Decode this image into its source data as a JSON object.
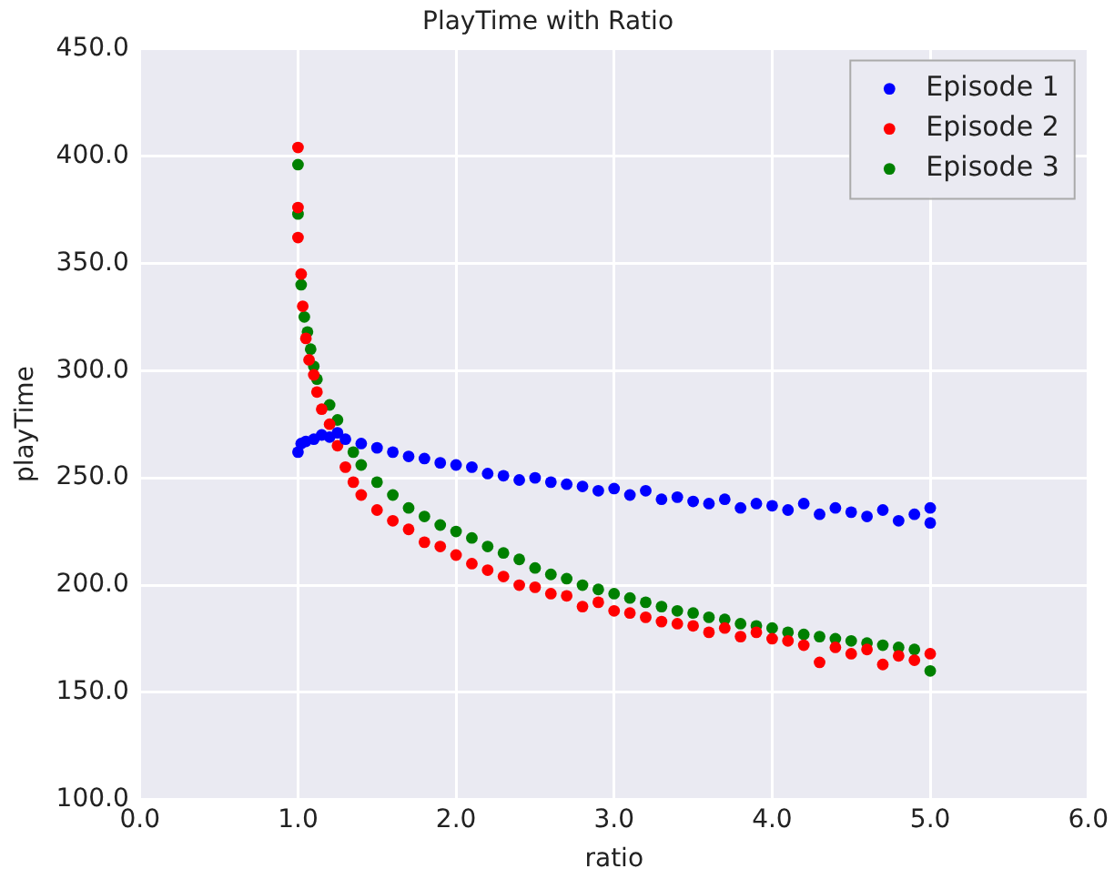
{
  "chart_data": {
    "type": "scatter",
    "title": "PlayTime with Ratio",
    "xlabel": "ratio",
    "ylabel": "playTime",
    "xlim": [
      0,
      6
    ],
    "ylim": [
      100,
      450
    ],
    "xticks": [
      {
        "value": 0,
        "label": "0.0"
      },
      {
        "value": 1,
        "label": "1.0"
      },
      {
        "value": 2,
        "label": "2.0"
      },
      {
        "value": 3,
        "label": "3.0"
      },
      {
        "value": 4,
        "label": "4.0"
      },
      {
        "value": 5,
        "label": "5.0"
      },
      {
        "value": 6,
        "label": "6.0"
      }
    ],
    "yticks": [
      {
        "value": 100,
        "label": "100.0"
      },
      {
        "value": 150,
        "label": "150.0"
      },
      {
        "value": 200,
        "label": "200.0"
      },
      {
        "value": 250,
        "label": "250.0"
      },
      {
        "value": 300,
        "label": "300.0"
      },
      {
        "value": 350,
        "label": "350.0"
      },
      {
        "value": 400,
        "label": "400.0"
      },
      {
        "value": 450,
        "label": "450.0"
      }
    ],
    "grid": true,
    "legend": "top right",
    "marker": "circle",
    "series": [
      {
        "name": "Episode 1",
        "color": "#0000ff",
        "x": [
          1.0,
          1.02,
          1.05,
          1.1,
          1.15,
          1.2,
          1.25,
          1.3,
          1.4,
          1.5,
          1.6,
          1.7,
          1.8,
          1.9,
          2.0,
          2.1,
          2.2,
          2.3,
          2.4,
          2.5,
          2.6,
          2.7,
          2.8,
          2.9,
          3.0,
          3.1,
          3.2,
          3.3,
          3.4,
          3.5,
          3.6,
          3.7,
          3.8,
          3.9,
          4.0,
          4.1,
          4.2,
          4.3,
          4.4,
          4.5,
          4.6,
          4.7,
          4.8,
          4.9,
          5.0,
          5.0
        ],
        "values": [
          262,
          266,
          267,
          268,
          270,
          269,
          271,
          268,
          266,
          264,
          262,
          260,
          259,
          257,
          256,
          255,
          252,
          251,
          249,
          250,
          248,
          247,
          246,
          244,
          245,
          242,
          244,
          240,
          241,
          239,
          238,
          240,
          236,
          238,
          237,
          235,
          238,
          233,
          236,
          234,
          232,
          235,
          230,
          233,
          236,
          229
        ]
      },
      {
        "name": "Episode 2",
        "color": "#ff0000",
        "x": [
          1.0,
          1.0,
          1.0,
          1.02,
          1.03,
          1.05,
          1.07,
          1.1,
          1.12,
          1.15,
          1.2,
          1.25,
          1.3,
          1.35,
          1.4,
          1.5,
          1.6,
          1.7,
          1.8,
          1.9,
          2.0,
          2.1,
          2.2,
          2.3,
          2.4,
          2.5,
          2.6,
          2.7,
          2.8,
          2.9,
          3.0,
          3.1,
          3.2,
          3.3,
          3.4,
          3.5,
          3.6,
          3.7,
          3.8,
          3.9,
          4.0,
          4.1,
          4.2,
          4.3,
          4.4,
          4.5,
          4.6,
          4.7,
          4.8,
          4.9,
          5.0
        ],
        "values": [
          404,
          376,
          362,
          345,
          330,
          315,
          305,
          298,
          290,
          282,
          275,
          265,
          255,
          248,
          242,
          235,
          230,
          226,
          220,
          218,
          214,
          210,
          207,
          204,
          200,
          199,
          196,
          195,
          190,
          192,
          188,
          187,
          185,
          183,
          182,
          181,
          178,
          180,
          176,
          178,
          175,
          174,
          172,
          164,
          171,
          168,
          170,
          163,
          167,
          165,
          168
        ]
      },
      {
        "name": "Episode 3",
        "color": "#008000",
        "x": [
          1.0,
          1.0,
          1.02,
          1.04,
          1.06,
          1.08,
          1.1,
          1.12,
          1.2,
          1.25,
          1.35,
          1.4,
          1.5,
          1.6,
          1.7,
          1.8,
          1.9,
          2.0,
          2.1,
          2.2,
          2.3,
          2.4,
          2.5,
          2.6,
          2.7,
          2.8,
          2.9,
          3.0,
          3.1,
          3.2,
          3.3,
          3.4,
          3.5,
          3.6,
          3.7,
          3.8,
          3.9,
          4.0,
          4.1,
          4.2,
          4.3,
          4.4,
          4.5,
          4.6,
          4.7,
          4.8,
          4.9,
          5.0
        ],
        "values": [
          396,
          373,
          340,
          325,
          318,
          310,
          302,
          296,
          284,
          277,
          262,
          256,
          248,
          242,
          236,
          232,
          228,
          225,
          222,
          218,
          215,
          212,
          208,
          205,
          203,
          200,
          198,
          196,
          194,
          192,
          190,
          188,
          187,
          185,
          184,
          182,
          181,
          180,
          178,
          177,
          176,
          175,
          174,
          173,
          172,
          171,
          170,
          160
        ]
      }
    ]
  }
}
